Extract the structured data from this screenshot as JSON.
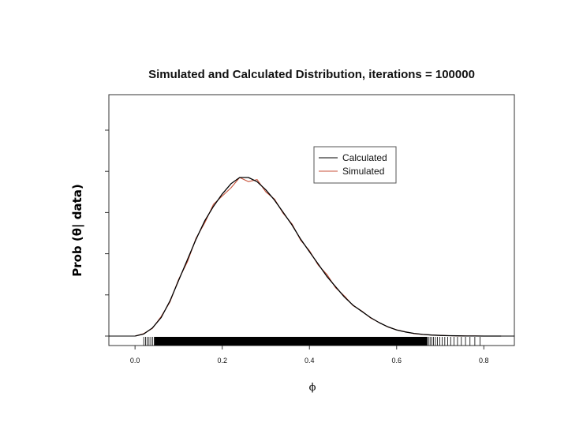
{
  "chart_data": {
    "type": "line",
    "title": "Simulated and Calculated Distribution, iterations =  100000",
    "xlabel": "ϕ",
    "ylabel": "Prob (θ| data)",
    "xlim": [
      -0.06,
      0.87
    ],
    "ylim": [
      0,
      1.0
    ],
    "x_ticks": [
      0.0,
      0.2,
      0.4,
      0.6,
      0.8
    ],
    "x_tick_labels": [
      "0.0",
      "0.2",
      "0.4",
      "0.6",
      "0.8"
    ],
    "y_ticks": [
      0,
      0.2,
      0.4,
      0.6,
      0.8,
      1.0
    ],
    "y_tick_labels_visible": false,
    "grid": false,
    "legend_position": "top-right",
    "rug": true,
    "rug_range": [
      0.02,
      0.8
    ],
    "series": [
      {
        "name": "Calculated",
        "color": "#000000",
        "x": [
          0.0,
          0.02,
          0.04,
          0.06,
          0.08,
          0.1,
          0.12,
          0.14,
          0.16,
          0.18,
          0.2,
          0.22,
          0.24,
          0.26,
          0.28,
          0.3,
          0.32,
          0.34,
          0.36,
          0.38,
          0.4,
          0.42,
          0.44,
          0.46,
          0.48,
          0.5,
          0.52,
          0.54,
          0.56,
          0.58,
          0.6,
          0.62,
          0.64,
          0.66,
          0.68,
          0.7,
          0.72,
          0.74,
          0.76,
          0.78,
          0.8,
          0.82,
          0.84
        ],
        "values": [
          0.0,
          0.01,
          0.04,
          0.09,
          0.17,
          0.27,
          0.37,
          0.47,
          0.56,
          0.63,
          0.69,
          0.74,
          0.77,
          0.77,
          0.75,
          0.71,
          0.66,
          0.6,
          0.54,
          0.47,
          0.41,
          0.35,
          0.29,
          0.24,
          0.19,
          0.15,
          0.12,
          0.09,
          0.065,
          0.045,
          0.03,
          0.02,
          0.013,
          0.008,
          0.005,
          0.003,
          0.002,
          0.001,
          0.0005,
          0.0002,
          0.0001,
          0.0,
          0.0
        ]
      },
      {
        "name": "Simulated",
        "color": "#c8523a",
        "x": [
          0.0,
          0.02,
          0.04,
          0.06,
          0.08,
          0.1,
          0.12,
          0.14,
          0.16,
          0.18,
          0.2,
          0.22,
          0.24,
          0.26,
          0.28,
          0.3,
          0.32,
          0.34,
          0.36,
          0.38,
          0.4,
          0.42,
          0.44,
          0.46,
          0.48,
          0.5,
          0.52,
          0.54,
          0.56,
          0.58,
          0.6,
          0.62,
          0.64,
          0.66,
          0.68,
          0.7,
          0.72,
          0.74,
          0.76,
          0.78,
          0.8,
          0.82,
          0.84
        ],
        "values": [
          0.0,
          0.012,
          0.038,
          0.095,
          0.165,
          0.275,
          0.36,
          0.475,
          0.55,
          0.64,
          0.68,
          0.72,
          0.77,
          0.75,
          0.76,
          0.7,
          0.665,
          0.595,
          0.545,
          0.465,
          0.415,
          0.345,
          0.3,
          0.235,
          0.195,
          0.148,
          0.122,
          0.088,
          0.066,
          0.044,
          0.03,
          0.021,
          0.012,
          0.008,
          0.005,
          0.003,
          0.002,
          0.001,
          0.0005,
          0.0002,
          0.0001,
          0.0,
          0.0
        ]
      }
    ]
  }
}
